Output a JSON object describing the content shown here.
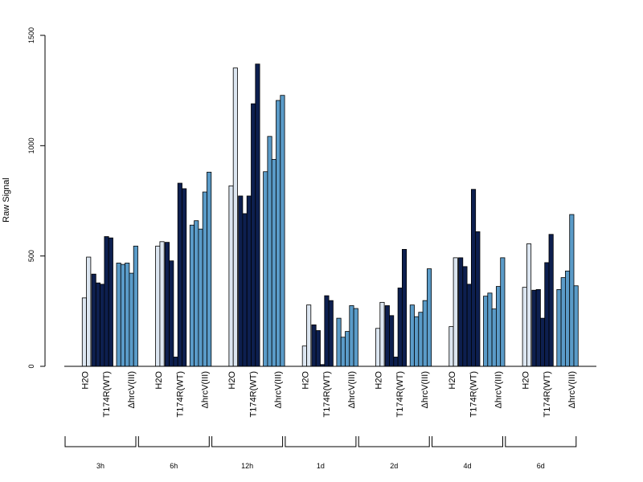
{
  "chart_data": {
    "type": "bar",
    "title": "",
    "xlabel": "",
    "ylabel": "Raw Signal",
    "ylim": [
      0,
      1500
    ],
    "yticks": [
      0,
      500,
      1000,
      1500
    ],
    "grid": false,
    "legend": "none",
    "colors": {
      "H2O": "#dce6f1",
      "T174R(WT)": "#0d1f4f",
      "hrcV": "#5a9bc8"
    },
    "condition_labels": [
      "H2O",
      "T174R(WT)",
      "ΔhrcV(III)"
    ],
    "groups": [
      {
        "time": "3h",
        "conditions": [
          {
            "name": "H2O",
            "values": [
              0,
              310,
              495
            ]
          },
          {
            "name": "T174R(WT)",
            "values": [
              418,
              378,
              372,
              588,
              582
            ]
          },
          {
            "name": "ΔhrcV(III)",
            "values": [
              468,
              462,
              468,
              422,
              545
            ]
          }
        ]
      },
      {
        "time": "6h",
        "conditions": [
          {
            "name": "H2O",
            "values": [
              0,
              545,
              565
            ]
          },
          {
            "name": "T174R(WT)",
            "values": [
              562,
              478,
              42,
              830,
              805
            ]
          },
          {
            "name": "ΔhrcV(III)",
            "values": [
              640,
              660,
              622,
              790,
              880
            ]
          }
        ]
      },
      {
        "time": "12h",
        "conditions": [
          {
            "name": "H2O",
            "values": [
              0,
              818,
              1352
            ]
          },
          {
            "name": "T174R(WT)",
            "values": [
              772,
              692,
              772,
              1190,
              1370
            ]
          },
          {
            "name": "ΔhrcV(III)",
            "values": [
              882,
              1042,
              938,
              1205,
              1228
            ]
          }
        ]
      },
      {
        "time": "1d",
        "conditions": [
          {
            "name": "H2O",
            "values": [
              0,
              92,
              278
            ]
          },
          {
            "name": "T174R(WT)",
            "values": [
              188,
              162,
              8,
              320,
              298
            ]
          },
          {
            "name": "ΔhrcV(III)",
            "values": [
              218,
              132,
              158,
              275,
              262
            ]
          }
        ]
      },
      {
        "time": "2d",
        "conditions": [
          {
            "name": "H2O",
            "values": [
              0,
              172,
              290
            ]
          },
          {
            "name": "T174R(WT)",
            "values": [
              275,
              230,
              42,
              355,
              530
            ]
          },
          {
            "name": "ΔhrcV(III)",
            "values": [
              278,
              225,
              245,
              298,
              442
            ]
          }
        ]
      },
      {
        "time": "4d",
        "conditions": [
          {
            "name": "H2O",
            "values": [
              0,
              180,
              492
            ]
          },
          {
            "name": "T174R(WT)",
            "values": [
              492,
              452,
              372,
              802,
              610
            ]
          },
          {
            "name": "ΔhrcV(III)",
            "values": [
              318,
              332,
              260,
              362,
              492
            ]
          }
        ]
      },
      {
        "time": "6d",
        "conditions": [
          {
            "name": "H2O",
            "values": [
              0,
              358,
              555
            ]
          },
          {
            "name": "T174R(WT)",
            "values": [
              345,
              348,
              218,
              470,
              598
            ]
          },
          {
            "name": "ΔhrcV(III)",
            "values": [
              348,
              402,
              432,
              688,
              365
            ]
          }
        ]
      }
    ]
  }
}
